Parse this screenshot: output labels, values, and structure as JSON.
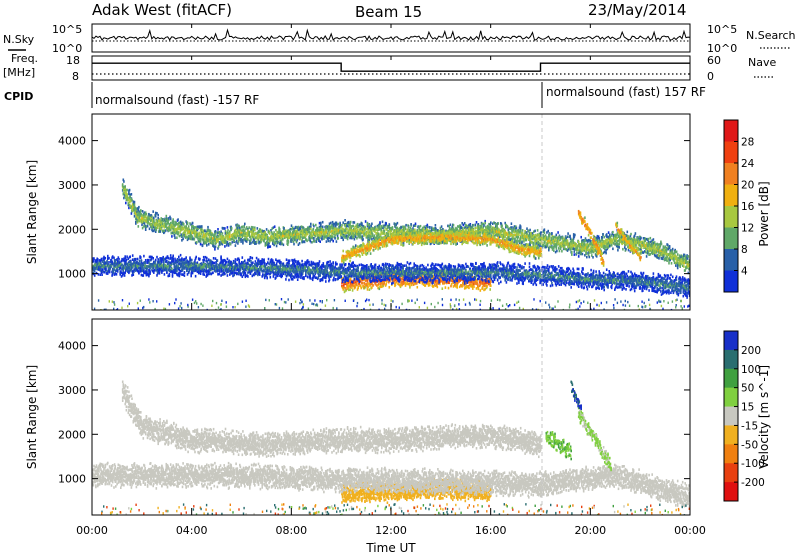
{
  "header": {
    "station": "Adak West (fitACF)",
    "beam": "Beam 15",
    "date": "23/May/2014"
  },
  "top_panels": {
    "nsky_label": "N.Sky",
    "nsearch_label": "N.Search",
    "noise_ticks": [
      "10^5",
      "10^0"
    ],
    "noise_right_ticks": [
      "10^5",
      "10^0"
    ],
    "freq_label_1": "Freq.",
    "freq_label_2": "[MHz]",
    "freq_ticks": [
      "18",
      "8"
    ],
    "nave_label": "Nave",
    "nave_ticks": [
      "60",
      "0"
    ],
    "cpid_label": "CPID",
    "cpid_left": "normalsound (fast) -157 RF",
    "cpid_right": "normalsound (fast) 157 RF"
  },
  "power_panel": {
    "ylabel": "Slant Range [km]",
    "yticks": [
      "4000",
      "3000",
      "2000",
      "1000"
    ],
    "cbar_label": "Power [dB]",
    "cbar_ticks": [
      "28",
      "24",
      "20",
      "16",
      "12",
      "8",
      "4"
    ],
    "cbar_colors": [
      "#e01818",
      "#f04010",
      "#f08020",
      "#f0b010",
      "#a8c840",
      "#60a868",
      "#2860a8",
      "#1030d8"
    ]
  },
  "velocity_panel": {
    "ylabel": "Slant Range [km]",
    "yticks": [
      "4000",
      "3000",
      "2000",
      "1000"
    ],
    "cbar_label": "Velocity [m s^-1]",
    "cbar_ticks": [
      "200",
      "100",
      "50",
      "15",
      "-15",
      "-50",
      "-100",
      "-200"
    ],
    "cbar_colors": [
      "#1830c8",
      "#2a6e70",
      "#40a040",
      "#80d040",
      "#c8c8c0",
      "#f0b020",
      "#f08010",
      "#e84010",
      "#e01010"
    ]
  },
  "xaxis": {
    "title": "Time UT",
    "ticks": [
      "00:00",
      "04:00",
      "08:00",
      "12:00",
      "16:00",
      "20:00",
      "00:00"
    ]
  },
  "chart_data": {
    "type": "heatmap",
    "title": "Adak West (fitACF) Beam 15 23/May/2014",
    "xlabel": "Time UT",
    "ylabel": "Slant Range [km]",
    "x_range_hours": [
      0,
      24
    ],
    "y_range_km": [
      180,
      4600
    ],
    "grid": false,
    "frequency_MHz": [
      {
        "from_hour": 0,
        "to_hour": 10,
        "value": 16
      },
      {
        "from_hour": 10,
        "to_hour": 18,
        "value": 11
      },
      {
        "from_hour": 18,
        "to_hour": 24,
        "value": 16
      }
    ],
    "cpid": [
      {
        "from_hour": 0,
        "to_hour": 18,
        "name": "normalsound (fast) -157 RF"
      },
      {
        "from_hour": 18,
        "to_hour": 24,
        "name": "normalsound (fast) 157 RF"
      }
    ],
    "power_bands": [
      {
        "points": [
          [
            1.2,
            3000
          ],
          [
            1.8,
            2300
          ],
          [
            3,
            2100
          ],
          [
            4,
            1950
          ],
          [
            5,
            1800
          ],
          [
            6,
            1950
          ],
          [
            7,
            1850
          ],
          [
            8,
            1900
          ],
          [
            10,
            2000
          ],
          [
            12,
            1950
          ],
          [
            14,
            1900
          ],
          [
            16,
            2000
          ],
          [
            17,
            1900
          ],
          [
            18,
            1800
          ],
          [
            19,
            1700
          ],
          [
            20,
            1600
          ],
          [
            21,
            1800
          ],
          [
            22,
            1700
          ],
          [
            23,
            1500
          ],
          [
            24,
            1200
          ]
        ],
        "width_km": 250,
        "power_dB": 14
      },
      {
        "points": [
          [
            10,
            1400
          ],
          [
            11,
            1600
          ],
          [
            12,
            1800
          ],
          [
            14,
            1850
          ],
          [
            16,
            1800
          ],
          [
            17,
            1600
          ],
          [
            18,
            1500
          ]
        ],
        "width_km": 160,
        "power_dB": 20
      },
      {
        "points": [
          [
            10,
            800
          ],
          [
            11,
            850
          ],
          [
            12,
            900
          ],
          [
            13,
            900
          ],
          [
            14,
            880
          ],
          [
            15,
            850
          ],
          [
            16,
            820
          ]
        ],
        "width_km": 200,
        "power_dB": 24
      },
      {
        "points": [
          [
            0,
            1200
          ],
          [
            4,
            1200
          ],
          [
            7,
            1150
          ],
          [
            9,
            1100
          ],
          [
            10,
            1050
          ],
          [
            16,
            1050
          ],
          [
            18,
            1000
          ],
          [
            20,
            900
          ],
          [
            22,
            850
          ],
          [
            24,
            700
          ]
        ],
        "width_km": 250,
        "power_dB": 8
      },
      {
        "points": [
          [
            19.5,
            2400
          ],
          [
            20,
            1900
          ],
          [
            20.5,
            1300
          ]
        ],
        "width_km": 150,
        "power_dB": 22
      },
      {
        "points": [
          [
            21,
            2100
          ],
          [
            21.5,
            1700
          ],
          [
            22,
            1400
          ]
        ],
        "width_km": 140,
        "power_dB": 20
      }
    ],
    "velocity_bands": [
      {
        "points": [
          [
            1.2,
            3000
          ],
          [
            2,
            2200
          ],
          [
            4,
            1900
          ],
          [
            7,
            1800
          ],
          [
            10,
            1900
          ],
          [
            12,
            1900
          ],
          [
            16,
            2000
          ],
          [
            18,
            1800
          ]
        ],
        "width_km": 300,
        "velocity_ms": 0
      },
      {
        "points": [
          [
            10,
            700
          ],
          [
            12,
            750
          ],
          [
            14,
            800
          ],
          [
            16,
            750
          ]
        ],
        "width_km": 260,
        "velocity_ms": -30
      },
      {
        "points": [
          [
            0,
            1100
          ],
          [
            6,
            1100
          ],
          [
            10,
            1000
          ],
          [
            18,
            900
          ],
          [
            21,
            1100
          ],
          [
            24,
            600
          ]
        ],
        "width_km": 300,
        "velocity_ms": 0
      },
      {
        "points": [
          [
            18.2,
            2000
          ],
          [
            18.7,
            1800
          ],
          [
            19.2,
            1600
          ]
        ],
        "width_km": 200,
        "velocity_ms": 30
      },
      {
        "points": [
          [
            19.5,
            2500
          ],
          [
            20.2,
            1900
          ],
          [
            20.8,
            1300
          ]
        ],
        "width_km": 180,
        "velocity_ms": 20
      },
      {
        "points": [
          [
            19.2,
            3100
          ],
          [
            19.6,
            2600
          ]
        ],
        "width_km": 150,
        "velocity_ms": 150
      }
    ]
  }
}
